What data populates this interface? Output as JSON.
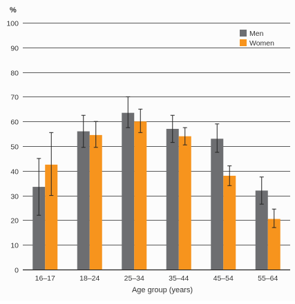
{
  "chart_data": {
    "type": "bar",
    "title": "",
    "ylabel": "%",
    "xlabel": "Age group (years)",
    "ylim": [
      0,
      100
    ],
    "yticks": [
      0,
      10,
      20,
      30,
      40,
      50,
      60,
      70,
      80,
      90,
      100
    ],
    "grid": true,
    "legend": "top-right",
    "categories": [
      "16–17",
      "18–24",
      "25–34",
      "35–44",
      "45–54",
      "55–64"
    ],
    "series": [
      {
        "name": "Men",
        "color": "#6d6e71",
        "values": [
          33.5,
          56,
          63.5,
          57,
          53,
          32
        ],
        "err_low": [
          22,
          49.5,
          57.5,
          51.5,
          47.5,
          26.5
        ],
        "err_high": [
          45,
          62.5,
          70,
          62.5,
          59,
          37.5
        ]
      },
      {
        "name": "Women",
        "color": "#f7941d",
        "values": [
          42.5,
          54.5,
          60,
          54,
          38,
          20.5
        ],
        "err_low": [
          30,
          49.5,
          55.5,
          50.5,
          34,
          17
        ],
        "err_high": [
          55.5,
          60,
          65,
          57.5,
          42,
          24.5
        ]
      }
    ]
  }
}
